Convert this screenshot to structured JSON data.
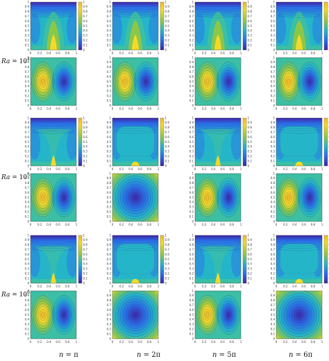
{
  "row_labels": [
    {
      "prefix": "Ra",
      "eq": "=",
      "base": "10",
      "exp": "4"
    },
    {
      "prefix": "Ra",
      "eq": "=",
      "base": "10",
      "exp": "5"
    },
    {
      "prefix": "Ra",
      "eq": "=",
      "base": "10",
      "exp": "6"
    }
  ],
  "column_labels": [
    {
      "var": "n",
      "eq": "=",
      "value": "π"
    },
    {
      "var": "n",
      "eq": "=",
      "value": "2π"
    },
    {
      "var": "n",
      "eq": "=",
      "value": "5π"
    },
    {
      "var": "n",
      "eq": "=",
      "value": "6π"
    }
  ],
  "colormap": {
    "dark_blue": "#3e26a8",
    "blue": "#2a6fe8",
    "cyan": "#25b5c8",
    "teal": "#3cbfa4",
    "green": "#8cc74a",
    "yellow": "#f5d92a",
    "gold": "#f0b82c"
  },
  "colorbar_ticks": [
    "1",
    "0.9",
    "0.8",
    "0.7",
    "0.6",
    "0.5",
    "0.4",
    "0.3",
    "0.2",
    "0.1",
    "0"
  ],
  "axis_ticks_y": [
    "1",
    "0.9",
    "0.8",
    "0.7",
    "0.6",
    "0.5",
    "0.4",
    "0.3",
    "0.2",
    "0.1",
    "0"
  ],
  "axis_ticks_x": [
    "0",
    "0.2",
    "0.4",
    "0.6",
    "0.8",
    "1"
  ],
  "panel_kinds": [
    "temperature",
    "streamfunction"
  ],
  "patterns": [
    [
      "temp-plume-narrow",
      "temp-plume-narrow",
      "temp-plume-narrow",
      "temp-plume-narrow"
    ],
    [
      "stream-dipole",
      "stream-dipole",
      "stream-dipole",
      "stream-dipole"
    ],
    [
      "temp-plume-thin",
      "temp-plume-wide",
      "temp-plume-thin",
      "temp-plume-wide"
    ],
    [
      "stream-dipole",
      "stream-ring",
      "stream-dipole",
      "stream-dipole"
    ],
    [
      "temp-plume-thin",
      "temp-plume-wide",
      "temp-plume-thin",
      "temp-plume-wide"
    ],
    [
      "stream-dipole",
      "stream-ring",
      "stream-dipole",
      "stream-ring"
    ]
  ]
}
